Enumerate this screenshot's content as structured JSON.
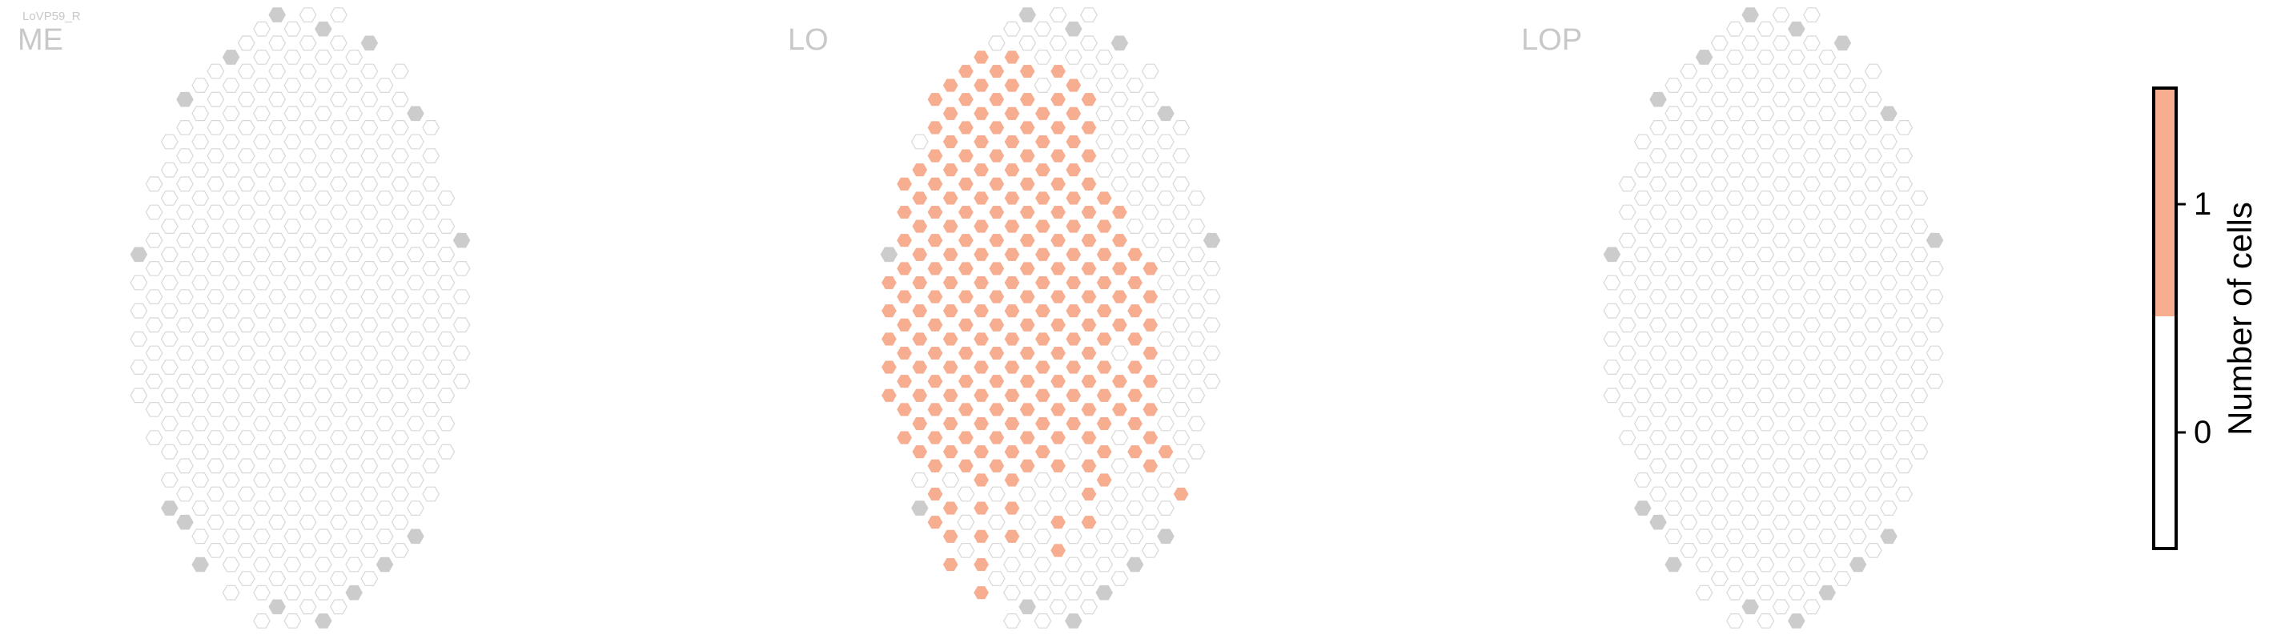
{
  "figure": {
    "small_label": "LoVP59_R"
  },
  "chart_data": {
    "type": "heatmap",
    "panels": [
      {
        "title": "ME",
        "filled": []
      },
      {
        "title": "LO",
        "filled": [
          [
            8,
            10,
            16
          ],
          [
            9,
            7,
            13
          ],
          [
            11,
            6,
            18
          ],
          [
            11,
            13,
            15
          ],
          [
            12,
            4,
            14
          ],
          [
            13,
            3,
            13
          ],
          [
            14,
            5,
            10
          ],
          [
            15,
            1,
            14
          ],
          [
            16,
            0,
            15
          ],
          [
            17,
            1,
            11
          ],
          [
            18,
            0,
            17
          ],
          [
            19,
            0,
            18
          ],
          [
            20,
            0,
            14
          ],
          [
            21,
            0,
            19
          ],
          [
            22,
            1,
            15
          ],
          [
            23,
            1,
            18
          ],
          [
            24,
            1,
            16
          ],
          [
            25,
            3,
            15
          ],
          [
            26,
            2,
            19
          ],
          [
            27,
            2,
            14
          ],
          [
            28,
            2,
            18
          ],
          [
            29,
            5,
            15
          ],
          [
            30,
            6,
            13
          ],
          [
            31,
            6,
            13
          ],
          [
            32,
            7,
            14
          ],
          [
            33,
            12,
            12
          ],
          [
            34,
            13,
            16
          ],
          [
            35,
            12,
            18
          ],
          [
            36,
            13,
            17
          ],
          [
            37,
            14,
            16
          ],
          [
            38,
            12,
            20
          ],
          [
            39,
            14,
            18
          ],
          [
            40,
            15,
            21
          ],
          [
            41,
            16,
            19
          ],
          [
            42,
            18,
            20
          ],
          [
            43,
            18,
            19
          ],
          [
            44,
            17,
            21
          ],
          [
            45,
            18,
            21
          ],
          [
            46,
            19,
            19
          ]
        ],
        "overlap": [
          [
            24,
            1
          ],
          [
            28,
            2
          ],
          [
            15,
            11
          ],
          [
            19,
            14
          ],
          [
            20,
            15
          ],
          [
            22,
            16
          ],
          [
            26,
            17
          ],
          [
            30,
            11
          ]
        ]
      },
      {
        "title": "LOP",
        "filled": []
      }
    ],
    "grid": {
      "columns": 52,
      "columns_note": "hexagonal column lattice per neuropil"
    },
    "colorbar": {
      "label": "Number of cells",
      "ticks": [
        {
          "value": 0,
          "label": "0"
        },
        {
          "value": 1,
          "label": "1"
        }
      ],
      "range": [
        -0.5,
        1.5
      ],
      "colors": {
        "zero": "#ffffff",
        "one": "#f7ad8f"
      }
    },
    "colors": {
      "empty_outline": "#d8d8d8",
      "boundary_fill": "#cccccc",
      "filled": "#f7ad8f",
      "title": "#c8c8c8"
    }
  }
}
